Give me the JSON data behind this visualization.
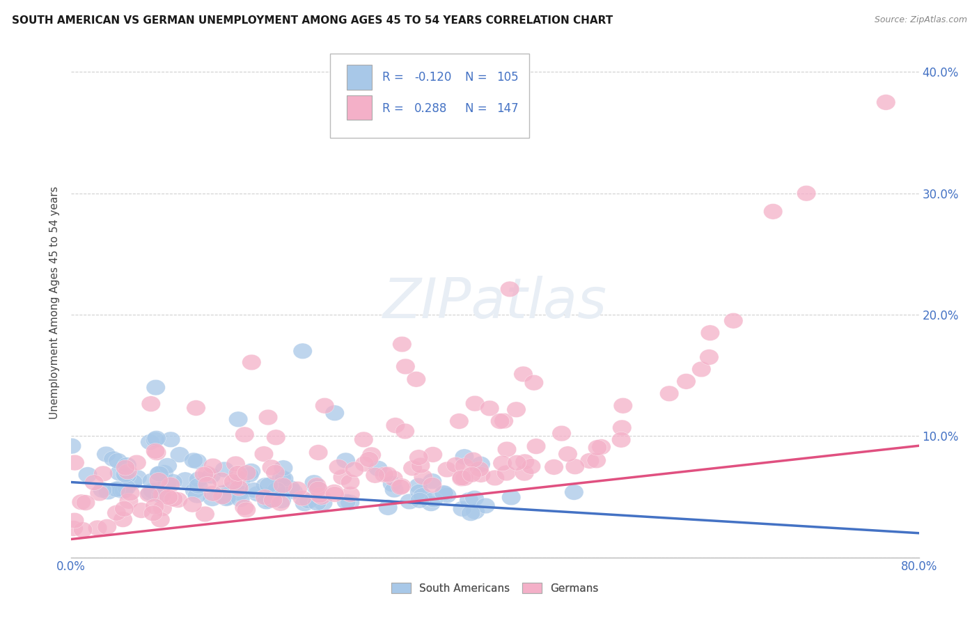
{
  "title": "SOUTH AMERICAN VS GERMAN UNEMPLOYMENT AMONG AGES 45 TO 54 YEARS CORRELATION CHART",
  "source": "Source: ZipAtlas.com",
  "ylabel": "Unemployment Among Ages 45 to 54 years",
  "xlim": [
    0.0,
    0.8
  ],
  "ylim": [
    0.0,
    0.42
  ],
  "xtick_vals": [
    0.0,
    0.1,
    0.2,
    0.3,
    0.4,
    0.5,
    0.6,
    0.7,
    0.8
  ],
  "xticklabels": [
    "0.0%",
    "",
    "",
    "",
    "",
    "",
    "",
    "",
    "80.0%"
  ],
  "ytick_vals": [
    0.0,
    0.1,
    0.2,
    0.3,
    0.4
  ],
  "yticklabels": [
    "",
    "10.0%",
    "20.0%",
    "30.0%",
    "40.0%"
  ],
  "blue_R": -0.12,
  "blue_N": 105,
  "pink_R": 0.288,
  "pink_N": 147,
  "blue_color": "#a8c8e8",
  "pink_color": "#f4b0c8",
  "blue_line_color": "#4472c4",
  "pink_line_color": "#e05080",
  "tick_color": "#4472c4",
  "watermark_color": "#e8eef5",
  "background_color": "#ffffff",
  "grid_color": "#d0d0d0",
  "legend_text_color": "#4472c4",
  "blue_line_start_y": 0.062,
  "blue_line_end_y": 0.02,
  "pink_line_start_y": 0.015,
  "pink_line_end_y": 0.092
}
